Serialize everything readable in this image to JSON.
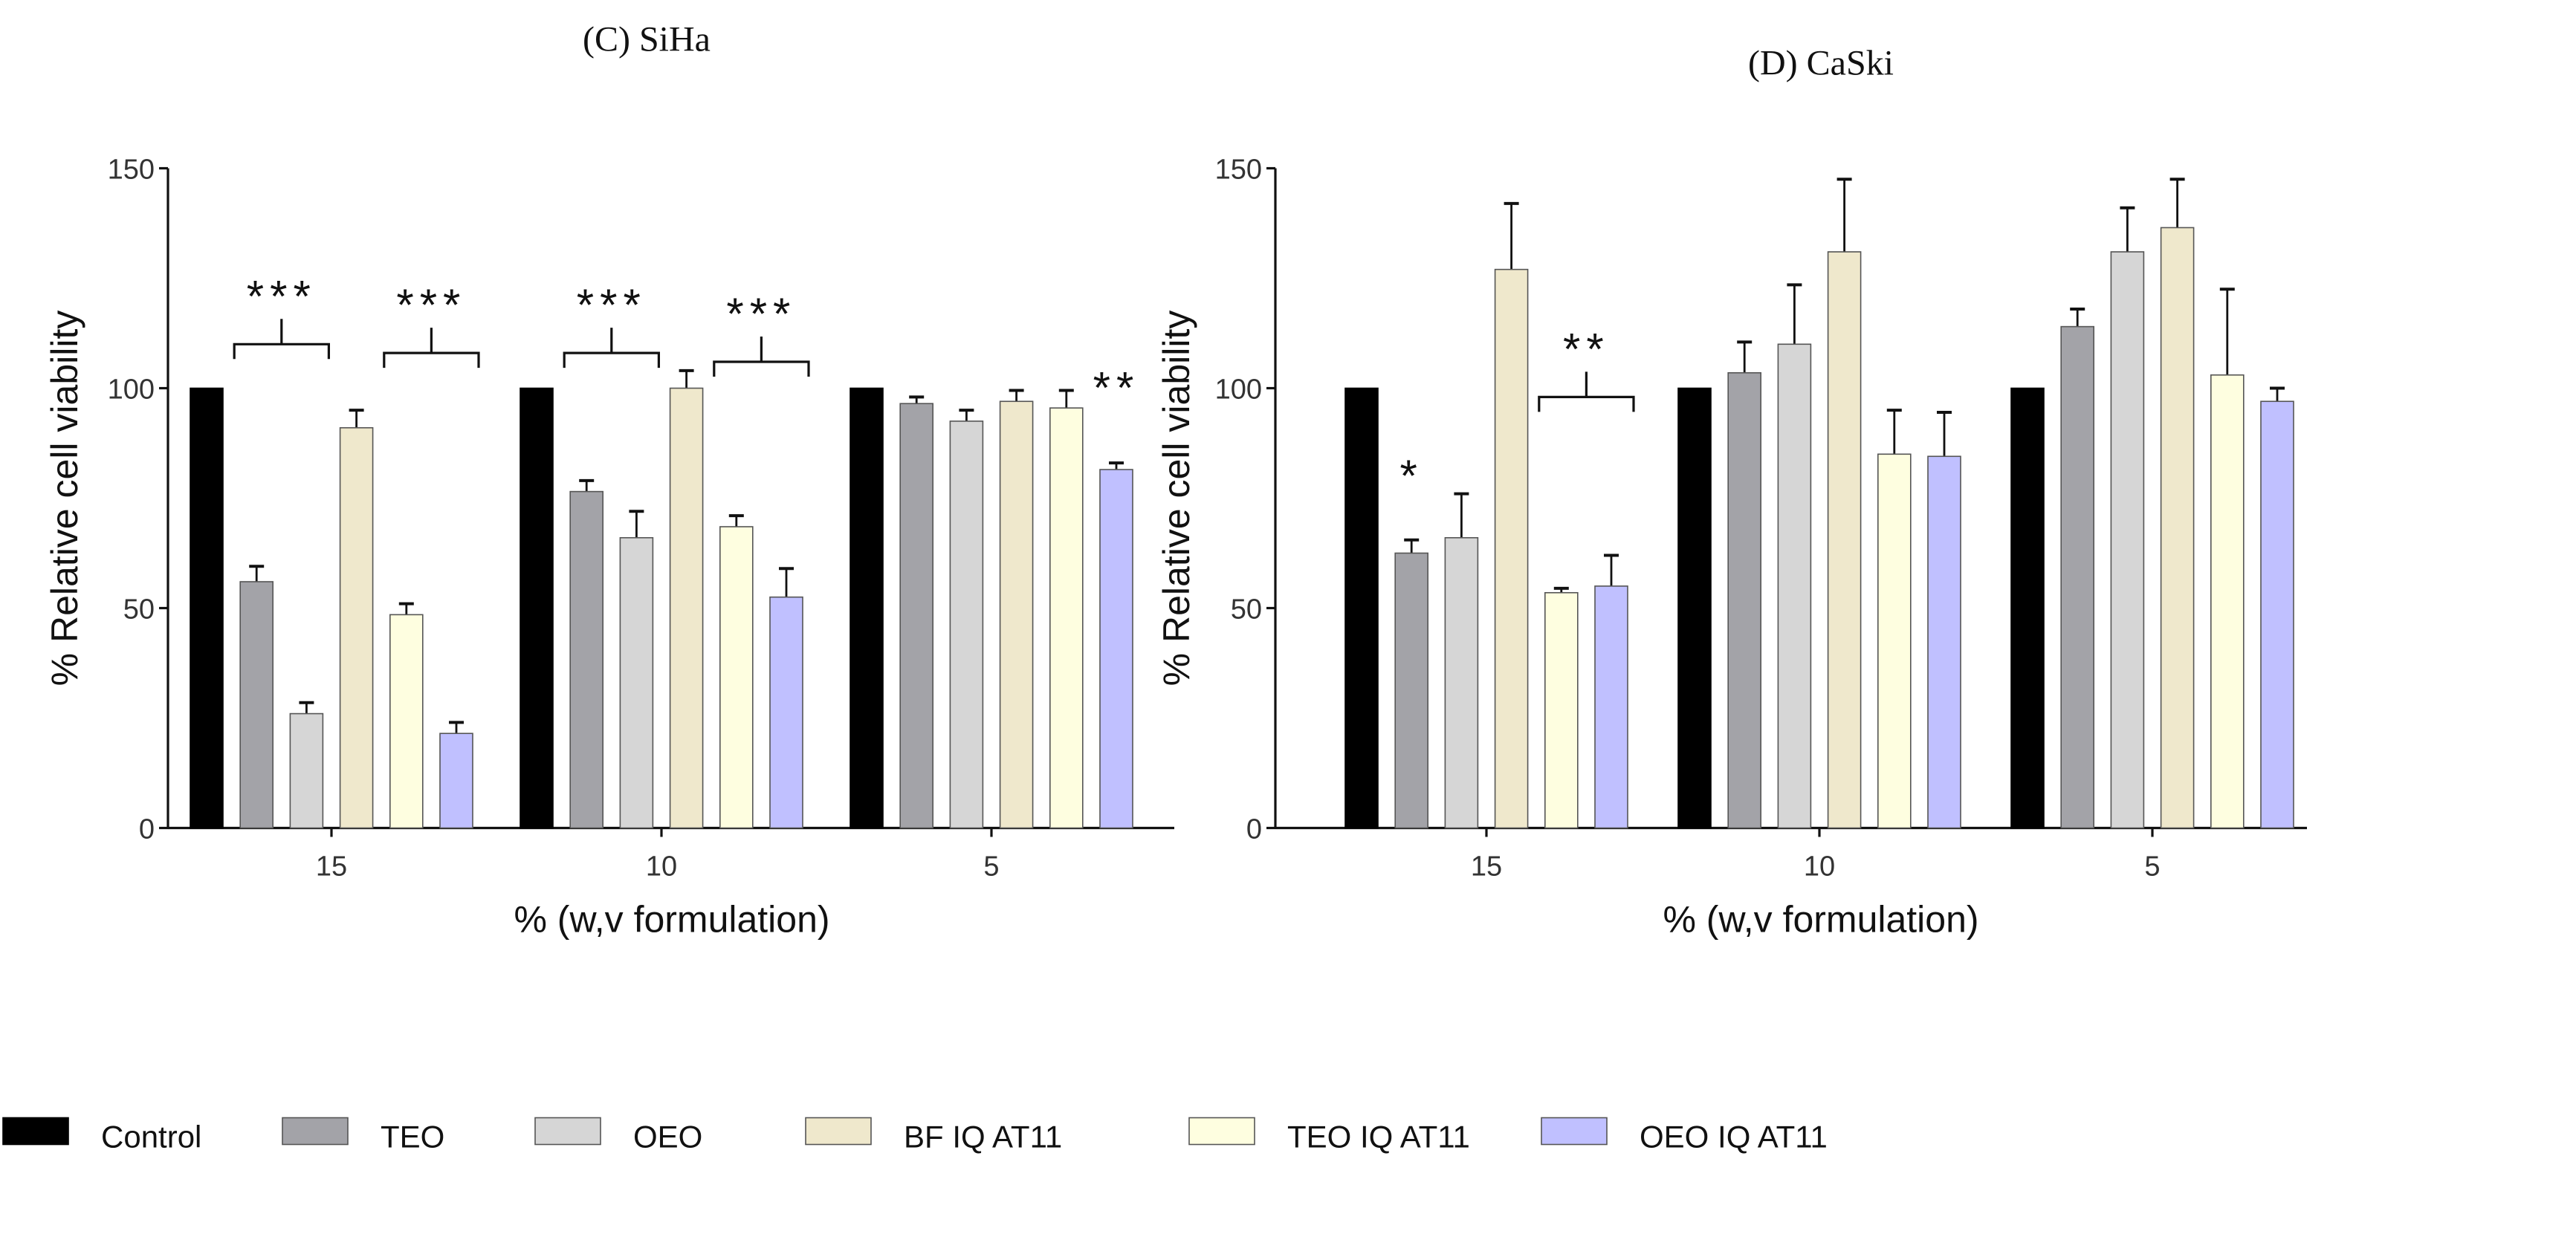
{
  "legend": [
    {
      "name": "Control",
      "color": "#000000"
    },
    {
      "name": "TEO",
      "color": "#a3a3a8"
    },
    {
      "name": "OEO",
      "color": "#d6d6d6"
    },
    {
      "name": "BF IQ AT11",
      "color": "#efe8cc"
    },
    {
      "name": "TEO IQ AT11",
      "color": "#fefee0"
    },
    {
      "name": "OEO IQ AT11",
      "color": "#c0c0ff"
    }
  ],
  "chart_data": [
    {
      "type": "bar",
      "title": "(C) SiHa",
      "xlabel": "% (w,v formulation)",
      "ylabel": "% Relative cell viability",
      "ylim": [
        0,
        150
      ],
      "yticks": [
        "0",
        "50",
        "100",
        "150"
      ],
      "categories": [
        "15",
        "10",
        "5"
      ],
      "series": [
        {
          "name": "Control",
          "values": [
            100,
            100,
            100
          ],
          "errors": [
            0,
            0,
            0
          ]
        },
        {
          "name": "TEO",
          "values": [
            56,
            76.5,
            96.5
          ],
          "errors": [
            3.5,
            2.5,
            1.5
          ]
        },
        {
          "name": "OEO",
          "values": [
            26,
            66,
            92.5
          ],
          "errors": [
            2.5,
            6,
            2.5
          ]
        },
        {
          "name": "BF IQ AT11",
          "values": [
            91,
            100,
            97
          ],
          "errors": [
            4,
            4,
            2.5
          ]
        },
        {
          "name": "TEO IQ AT11",
          "values": [
            48.5,
            68.5,
            95.5
          ],
          "errors": [
            2.5,
            2.5,
            4
          ]
        },
        {
          "name": "OEO IQ AT11",
          "values": [
            21.5,
            52.5,
            81.5
          ],
          "errors": [
            2.5,
            6.5,
            1.5
          ]
        }
      ],
      "annotations": [
        {
          "group": 0,
          "from": 1,
          "to": 2,
          "label": "***",
          "level": 110
        },
        {
          "group": 0,
          "from": 4,
          "to": 5,
          "label": "***",
          "level": 108
        },
        {
          "group": 1,
          "from": 1,
          "to": 2,
          "label": "***",
          "level": 108
        },
        {
          "group": 1,
          "from": 4,
          "to": 5,
          "label": "***",
          "level": 106
        },
        {
          "group": 2,
          "from": 5,
          "to": 5,
          "label": "**",
          "level": 100
        }
      ]
    },
    {
      "type": "bar",
      "title": "(D) CaSki",
      "xlabel": "% (w,v formulation)",
      "ylabel": "% Relative cell viability",
      "ylim": [
        0,
        150
      ],
      "yticks": [
        "0",
        "50",
        "100",
        "150"
      ],
      "categories": [
        "15",
        "10",
        "5"
      ],
      "series": [
        {
          "name": "Control",
          "values": [
            100,
            100,
            100
          ],
          "errors": [
            0,
            0,
            0
          ]
        },
        {
          "name": "TEO",
          "values": [
            62.5,
            103.5,
            114
          ],
          "errors": [
            3,
            7,
            4
          ]
        },
        {
          "name": "OEO",
          "values": [
            66,
            110,
            131
          ],
          "errors": [
            10,
            13.5,
            10
          ]
        },
        {
          "name": "BF IQ AT11",
          "values": [
            127,
            131,
            136.5
          ],
          "errors": [
            15,
            16.5,
            11
          ]
        },
        {
          "name": "TEO IQ AT11",
          "values": [
            53.5,
            85,
            103
          ],
          "errors": [
            1,
            10,
            19.5
          ]
        },
        {
          "name": "OEO IQ AT11",
          "values": [
            55,
            84.5,
            97
          ],
          "errors": [
            7,
            10,
            3
          ]
        }
      ],
      "annotations": [
        {
          "group": 0,
          "from": 1,
          "to": 1,
          "label": "*",
          "level": 80
        },
        {
          "group": 0,
          "from": 4,
          "to": 5,
          "label": "**",
          "level": 98
        }
      ]
    }
  ]
}
